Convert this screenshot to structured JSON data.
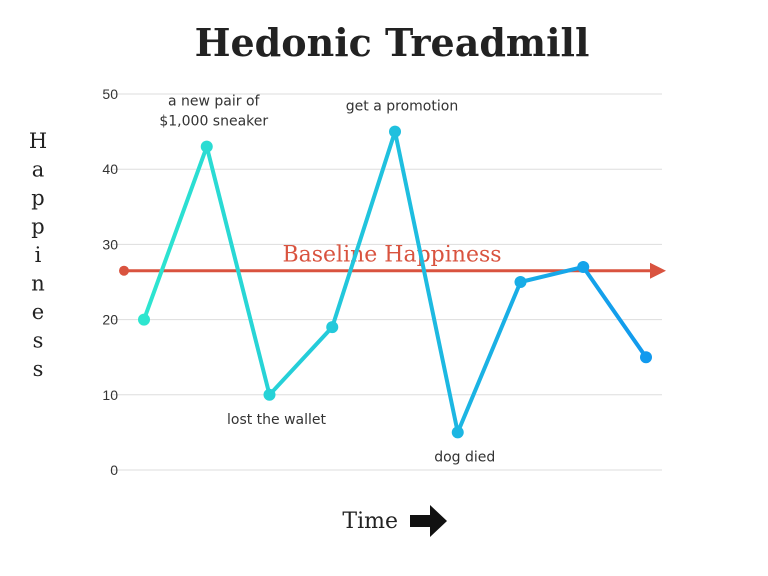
{
  "chart_data": {
    "type": "line",
    "title": "Hedonic Treadmill",
    "xlabel": "Time",
    "ylabel": "Happiness",
    "ylim": [
      0,
      50
    ],
    "yticks": [
      0,
      10,
      20,
      30,
      40,
      50
    ],
    "grid": true,
    "x": [
      1,
      2,
      3,
      4,
      5,
      6,
      7,
      8,
      9
    ],
    "series": [
      {
        "values": [
          20,
          43,
          10,
          19,
          45,
          5,
          25,
          27,
          15
        ]
      }
    ],
    "baseline": {
      "label": "Baseline Happiness",
      "value": 26.5,
      "color": "#d9533f"
    },
    "annotations": [
      {
        "point": 2,
        "lines": [
          "a new pair of",
          "$1,000 sneaker"
        ]
      },
      {
        "point": 3,
        "lines": [
          "lost the wallet"
        ]
      },
      {
        "point": 5,
        "lines": [
          "get a promotion"
        ]
      },
      {
        "point": 6,
        "lines": [
          "dog died"
        ]
      }
    ],
    "colors": {
      "line_start": "#2ee6cf",
      "line_end": "#1199ee",
      "grid": "#dddddd"
    }
  }
}
